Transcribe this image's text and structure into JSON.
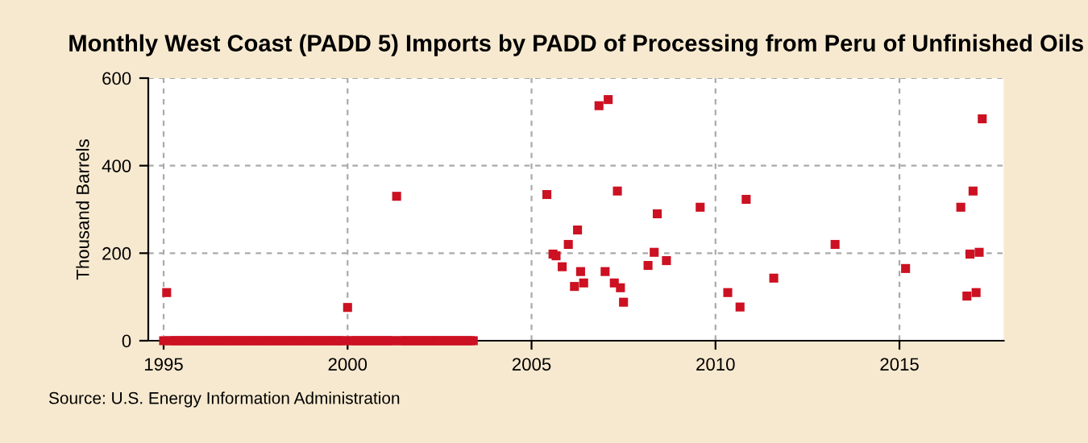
{
  "chart_data": {
    "type": "scatter",
    "title": "Monthly West Coast (PADD 5) Imports by PADD of Processing from Peru of Unfinished Oils",
    "ylabel": "Thousand Barrels",
    "annotations": [
      "Source: U.S. Energy Information Administration"
    ],
    "series": [
      {
        "color": "#cc1122",
        "x": [
          "1995-02",
          "2000-01",
          "2001-05",
          "2005-06",
          "2005-08",
          "2005-09",
          "2005-11",
          "2006-01",
          "2006-03",
          "2006-04",
          "2006-05",
          "2006-06",
          "2006-11",
          "2007-01",
          "2007-02",
          "2007-04",
          "2007-05",
          "2007-06",
          "2007-07",
          "2008-03",
          "2008-05",
          "2008-06",
          "2008-09",
          "2009-08",
          "2010-05",
          "2010-09",
          "2010-11",
          "2011-08",
          "2013-04",
          "2015-03",
          "2016-09",
          "2016-11",
          "2016-12",
          "2017-01",
          "2017-02",
          "2017-03",
          "2017-04"
        ],
        "values": [
          110,
          76,
          330,
          334,
          198,
          194,
          169,
          220,
          124,
          253,
          158,
          132,
          537,
          158,
          551,
          132,
          342,
          121,
          88,
          172,
          202,
          290,
          183,
          305,
          110,
          77,
          323,
          143,
          220,
          165,
          305,
          102,
          198,
          342,
          110,
          202,
          507
        ]
      },
      {
        "color": "#cc1122",
        "x": [
          "1995-01",
          "1995-03",
          "1995-04",
          "1995-05",
          "1995-06",
          "1995-07",
          "1995-08",
          "1995-09",
          "1995-10",
          "1995-11",
          "1995-12",
          "1996-01",
          "1996-02",
          "1996-03",
          "1996-04",
          "1996-05",
          "1996-06",
          "1996-07",
          "1996-08",
          "1996-09",
          "1996-10",
          "1996-11",
          "1996-12",
          "1997-01",
          "1997-02",
          "1997-03",
          "1997-04",
          "1997-05",
          "1997-06",
          "1997-07",
          "1997-08",
          "1997-09",
          "1997-10",
          "1997-11",
          "1997-12",
          "1998-01",
          "1998-02",
          "1998-03",
          "1998-04",
          "1998-05",
          "1998-06",
          "1998-07",
          "1998-08",
          "1998-09",
          "1998-10",
          "1998-11",
          "1998-12",
          "1999-01",
          "1999-02",
          "1999-03",
          "1999-04",
          "1999-05",
          "1999-06",
          "1999-07",
          "1999-08",
          "1999-09",
          "1999-10",
          "1999-11",
          "1999-12",
          "2000-02",
          "2000-03",
          "2000-04",
          "2000-05",
          "2000-06",
          "2000-07",
          "2000-08",
          "2000-09",
          "2000-10",
          "2000-11",
          "2000-12",
          "2001-01",
          "2001-02",
          "2001-03",
          "2001-04",
          "2001-06",
          "2001-07",
          "2001-08",
          "2001-09",
          "2001-10",
          "2001-11",
          "2001-12",
          "2002-01",
          "2002-02",
          "2002-03",
          "2002-04",
          "2002-05",
          "2002-06",
          "2002-07",
          "2002-08",
          "2002-09",
          "2002-10",
          "2002-11",
          "2002-12",
          "2003-01",
          "2003-02",
          "2003-03",
          "2003-04",
          "2003-05",
          "2003-06"
        ],
        "values": [
          0,
          0,
          0,
          0,
          0,
          0,
          0,
          0,
          0,
          0,
          0,
          0,
          0,
          0,
          0,
          0,
          0,
          0,
          0,
          0,
          0,
          0,
          0,
          0,
          0,
          0,
          0,
          0,
          0,
          0,
          0,
          0,
          0,
          0,
          0,
          0,
          0,
          0,
          0,
          0,
          0,
          0,
          0,
          0,
          0,
          0,
          0,
          0,
          0,
          0,
          0,
          0,
          0,
          0,
          0,
          0,
          0,
          0,
          0,
          0,
          0,
          0,
          0,
          0,
          0,
          0,
          0,
          0,
          0,
          0,
          0,
          0,
          0,
          0,
          0,
          0,
          0,
          0,
          0,
          0,
          0,
          0,
          0,
          0,
          0,
          0,
          0,
          0,
          0,
          0,
          0,
          0,
          0,
          0,
          0,
          0,
          0,
          0,
          0
        ]
      }
    ],
    "xlim": [
      "1994-08",
      "2017-11"
    ],
    "xticks": [
      "1995",
      "2000",
      "2005",
      "2010",
      "2015"
    ],
    "ylim": [
      0,
      600
    ],
    "yticks": [
      0,
      200,
      400,
      600
    ],
    "grid": true,
    "marker": "square"
  }
}
